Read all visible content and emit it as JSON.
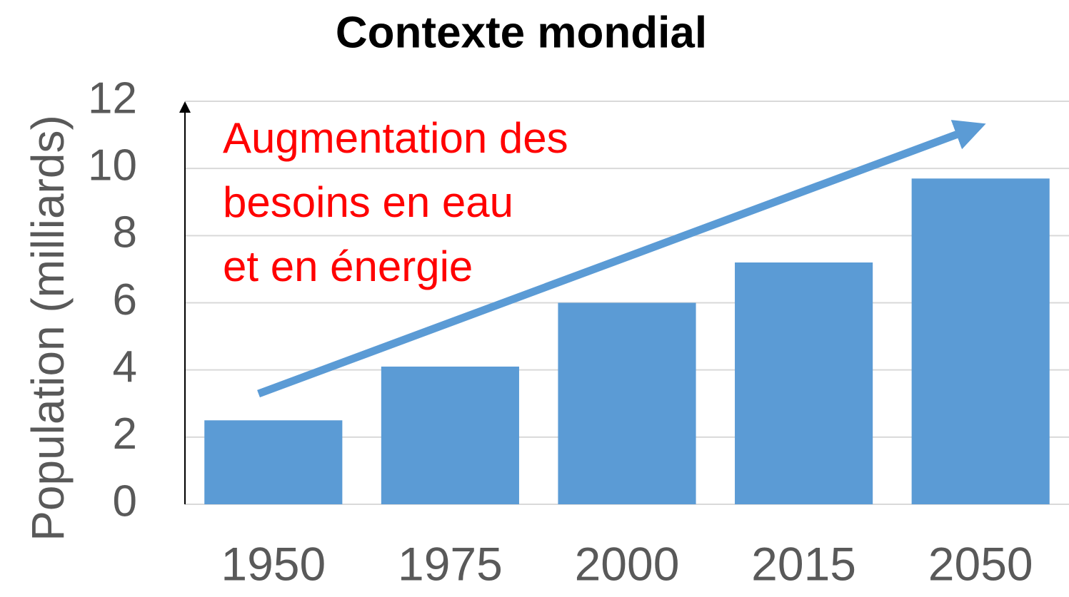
{
  "chart_data": {
    "type": "bar",
    "title": "Contexte mondial",
    "ylabel": "Population  (milliards)",
    "annotation": [
      "Augmentation des",
      "besoins en eau",
      "et en énergie"
    ],
    "categories": [
      "1950",
      "1975",
      "2000",
      "2015",
      "2050"
    ],
    "values": [
      2.5,
      4.1,
      6.0,
      7.2,
      9.7
    ],
    "color": "#5b9bd5",
    "ylim": [
      0,
      12
    ],
    "yticks": [
      0,
      2,
      4,
      6,
      8,
      10,
      12
    ],
    "grid": true
  }
}
